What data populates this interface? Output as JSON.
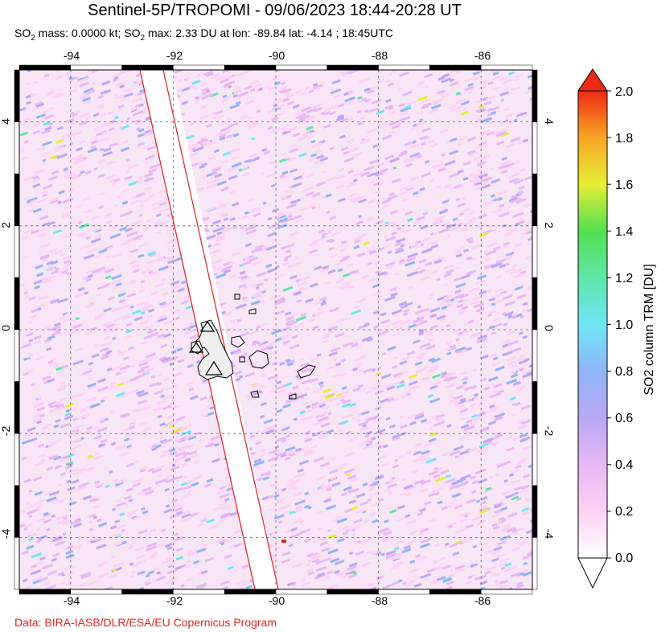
{
  "header": {
    "title": "Sentinel-5P/TROPOMI - 09/06/2023 18:44-20:28 UT",
    "subtitle_prefix": "SO",
    "subtitle_sub1": "2",
    "subtitle_mid1": " mass: 0.0000 kt; SO",
    "subtitle_sub2": "2",
    "subtitle_rest": " max: 2.33 DU at lon: -89.84 lat: -4.14 ; 18:45UTC"
  },
  "credit": "Data: BIRA-IASB/DLR/ESA/EU Copernicus Program",
  "map": {
    "lon_range": [
      -95,
      -85
    ],
    "lat_range": [
      -5,
      5
    ],
    "lon_ticks": [
      -94,
      -92,
      -90,
      -88,
      -86
    ],
    "lat_ticks": [
      4,
      2,
      0,
      -2,
      -4
    ],
    "lon_tick_labels": [
      "-94",
      "-92",
      "-90",
      "-88",
      "-86"
    ],
    "lat_tick_labels": [
      "4",
      "2",
      "0",
      "-2",
      "-4"
    ],
    "swath_gap_edges_lon": [
      [
        -92.6,
        -89.95
      ],
      [
        -92.15,
        -89.9
      ]
    ],
    "volcano_markers": 3,
    "max_marker_lon": -89.84,
    "max_marker_lat": -4.14
  },
  "colorbar": {
    "label": "SO2 column TRM [DU]",
    "tick_labels": [
      "0.0",
      "0.2",
      "0.4",
      "0.6",
      "0.8",
      "1.0",
      "1.2",
      "1.4",
      "1.6",
      "1.8",
      "2.0"
    ],
    "colors": [
      "#ffffff",
      "#fcd2f4",
      "#e6b8f4",
      "#b9a8f5",
      "#8fb4f6",
      "#6fe6f6",
      "#5fe6a8",
      "#52e050",
      "#e6ee36",
      "#f9a526",
      "#ee2a12"
    ]
  }
}
